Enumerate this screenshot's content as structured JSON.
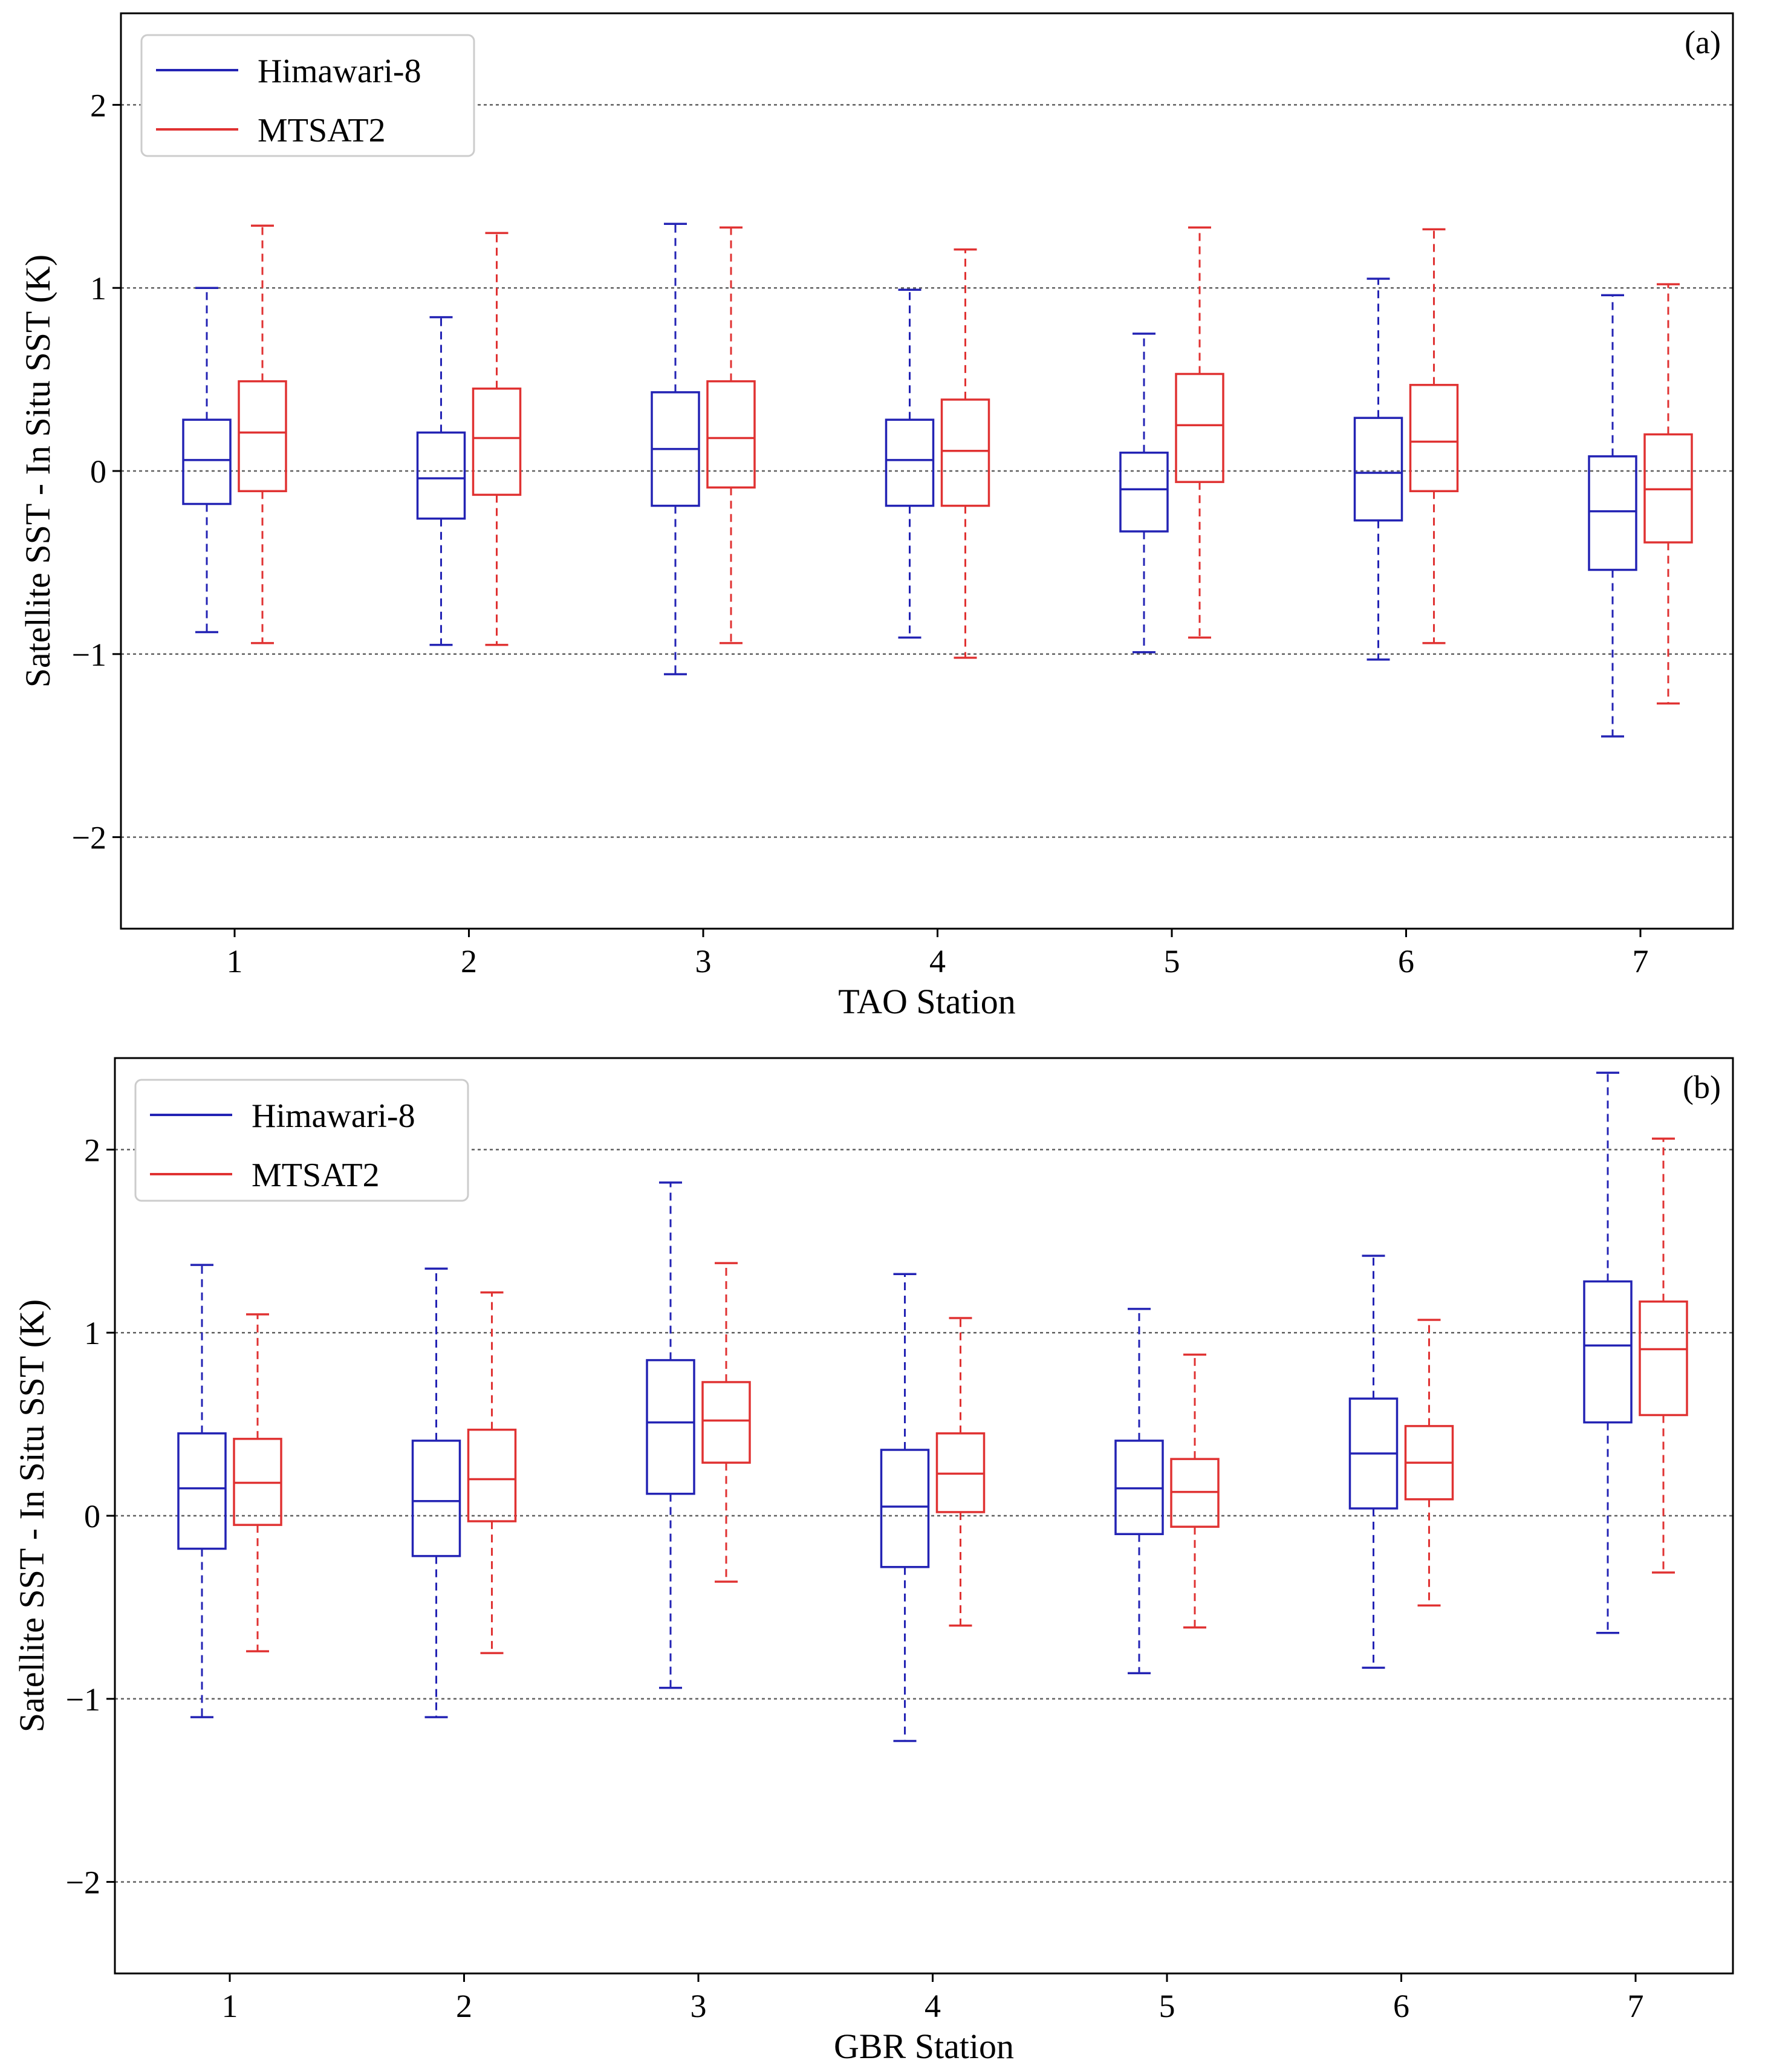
{
  "colors": {
    "himawari": "#2323b4",
    "mtsat": "#e03232",
    "axis": "#000000",
    "grid": "#606060"
  },
  "chart_data": [
    {
      "type": "boxplot",
      "panel_label": "(a)",
      "xlabel": "TAO Station",
      "ylabel": "Satellite SST - In Situ SST (K)",
      "ylim": [
        -2.5,
        2.5
      ],
      "yticks": [
        -2,
        -1,
        0,
        1,
        2
      ],
      "ytick_labels": [
        "−2",
        "−1",
        "0",
        "1",
        "2"
      ],
      "grid": "dotted horizontal at major y ticks",
      "legend_position": "upper-left",
      "categories": [
        "1",
        "2",
        "3",
        "4",
        "5",
        "6",
        "7"
      ],
      "series": [
        {
          "name": "Himawari-8",
          "stats": [
            {
              "whislo": -0.88,
              "q1": -0.18,
              "med": 0.06,
              "q3": 0.28,
              "whishi": 1.0
            },
            {
              "whislo": -0.95,
              "q1": -0.26,
              "med": -0.04,
              "q3": 0.21,
              "whishi": 0.84
            },
            {
              "whislo": -1.11,
              "q1": -0.19,
              "med": 0.12,
              "q3": 0.43,
              "whishi": 1.35
            },
            {
              "whislo": -0.91,
              "q1": -0.19,
              "med": 0.06,
              "q3": 0.28,
              "whishi": 0.99
            },
            {
              "whislo": -0.99,
              "q1": -0.33,
              "med": -0.1,
              "q3": 0.1,
              "whishi": 0.75
            },
            {
              "whislo": -1.03,
              "q1": -0.27,
              "med": -0.01,
              "q3": 0.29,
              "whishi": 1.05
            },
            {
              "whislo": -1.45,
              "q1": -0.54,
              "med": -0.22,
              "q3": 0.08,
              "whishi": 0.96
            }
          ]
        },
        {
          "name": "MTSAT2",
          "stats": [
            {
              "whislo": -0.94,
              "q1": -0.11,
              "med": 0.21,
              "q3": 0.49,
              "whishi": 1.34
            },
            {
              "whislo": -0.95,
              "q1": -0.13,
              "med": 0.18,
              "q3": 0.45,
              "whishi": 1.3
            },
            {
              "whislo": -0.94,
              "q1": -0.09,
              "med": 0.18,
              "q3": 0.49,
              "whishi": 1.33
            },
            {
              "whislo": -1.02,
              "q1": -0.19,
              "med": 0.11,
              "q3": 0.39,
              "whishi": 1.21
            },
            {
              "whislo": -0.91,
              "q1": -0.06,
              "med": 0.25,
              "q3": 0.53,
              "whishi": 1.33
            },
            {
              "whislo": -0.94,
              "q1": -0.11,
              "med": 0.16,
              "q3": 0.47,
              "whishi": 1.32
            },
            {
              "whislo": -1.27,
              "q1": -0.39,
              "med": -0.1,
              "q3": 0.2,
              "whishi": 1.02
            }
          ]
        }
      ]
    },
    {
      "type": "boxplot",
      "panel_label": "(b)",
      "xlabel": "GBR Station",
      "ylabel": "Satellite SST - In Situ SST (K)",
      "ylim": [
        -2.5,
        2.5
      ],
      "yticks": [
        -2,
        -1,
        0,
        1,
        2
      ],
      "ytick_labels": [
        "−2",
        "−1",
        "0",
        "1",
        "2"
      ],
      "grid": "dotted horizontal at major y ticks",
      "legend_position": "upper-left",
      "categories": [
        "1",
        "2",
        "3",
        "4",
        "5",
        "6",
        "7"
      ],
      "series": [
        {
          "name": "Himawari-8",
          "stats": [
            {
              "whislo": -1.1,
              "q1": -0.18,
              "med": 0.15,
              "q3": 0.45,
              "whishi": 1.37
            },
            {
              "whislo": -1.1,
              "q1": -0.22,
              "med": 0.08,
              "q3": 0.41,
              "whishi": 1.35
            },
            {
              "whislo": -0.94,
              "q1": 0.12,
              "med": 0.51,
              "q3": 0.85,
              "whishi": 1.82
            },
            {
              "whislo": -1.23,
              "q1": -0.28,
              "med": 0.05,
              "q3": 0.36,
              "whishi": 1.32
            },
            {
              "whislo": -0.86,
              "q1": -0.1,
              "med": 0.15,
              "q3": 0.41,
              "whishi": 1.13
            },
            {
              "whislo": -0.83,
              "q1": 0.04,
              "med": 0.34,
              "q3": 0.64,
              "whishi": 1.42
            },
            {
              "whislo": -0.64,
              "q1": 0.51,
              "med": 0.93,
              "q3": 1.28,
              "whishi": 2.42
            }
          ]
        },
        {
          "name": "MTSAT2",
          "stats": [
            {
              "whislo": -0.74,
              "q1": -0.05,
              "med": 0.18,
              "q3": 0.42,
              "whishi": 1.1
            },
            {
              "whislo": -0.75,
              "q1": -0.03,
              "med": 0.2,
              "q3": 0.47,
              "whishi": 1.22
            },
            {
              "whislo": -0.36,
              "q1": 0.29,
              "med": 0.52,
              "q3": 0.73,
              "whishi": 1.38
            },
            {
              "whislo": -0.6,
              "q1": 0.02,
              "med": 0.23,
              "q3": 0.45,
              "whishi": 1.08
            },
            {
              "whislo": -0.61,
              "q1": -0.06,
              "med": 0.13,
              "q3": 0.31,
              "whishi": 0.88
            },
            {
              "whislo": -0.49,
              "q1": 0.09,
              "med": 0.29,
              "q3": 0.49,
              "whishi": 1.07
            },
            {
              "whislo": -0.31,
              "q1": 0.55,
              "med": 0.91,
              "q3": 1.17,
              "whishi": 2.06
            }
          ]
        }
      ]
    }
  ]
}
